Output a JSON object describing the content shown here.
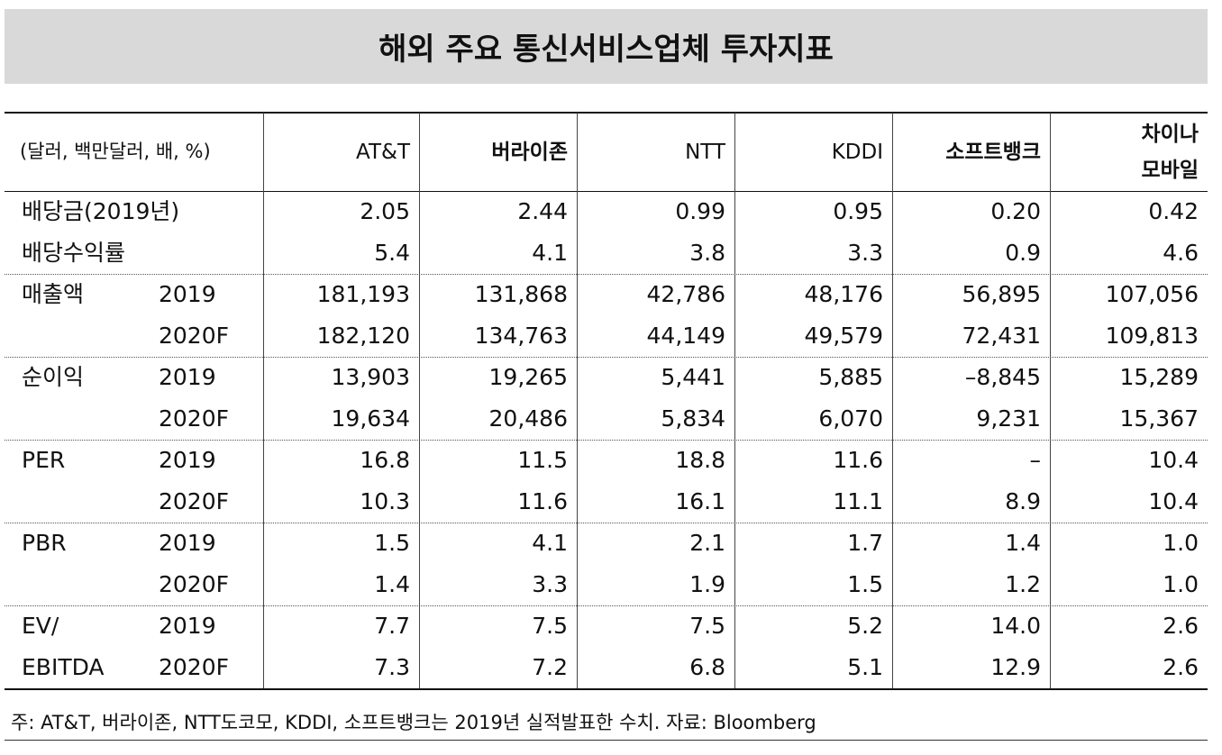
{
  "header": {
    "title": "해외 주요 통신서비스업체 투자지표"
  },
  "table": {
    "unit_label": "(달러, 백만달러, 배, %)",
    "columns": [
      [
        "AT&T"
      ],
      [
        "버라이존"
      ],
      [
        "NTT"
      ],
      [
        "KDDI"
      ],
      [
        "소프트뱅크"
      ],
      [
        "차이나",
        "모바일"
      ]
    ],
    "rows": [
      {
        "label": "배당금(2019년)",
        "values": [
          "2.05",
          "2.44",
          "0.99",
          "0.95",
          "0.20",
          "0.42"
        ]
      },
      {
        "label": "배당수익률",
        "values": [
          "5.4",
          "4.1",
          "3.8",
          "3.3",
          "0.9",
          "4.6"
        ]
      },
      {
        "label": "매출액",
        "year": "2019",
        "values": [
          "181,193",
          "131,868",
          "42,786",
          "48,176",
          "56,895",
          "107,056"
        ]
      },
      {
        "year": "2020F",
        "values": [
          "182,120",
          "134,763",
          "44,149",
          "49,579",
          "72,431",
          "109,813"
        ]
      },
      {
        "label": "순이익",
        "year": "2019",
        "values": [
          "13,903",
          "19,265",
          "5,441",
          "5,885",
          "–8,845",
          "15,289"
        ]
      },
      {
        "year": "2020F",
        "values": [
          "19,634",
          "20,486",
          "5,834",
          "6,070",
          "9,231",
          "15,367"
        ]
      },
      {
        "label": "PER",
        "year": "2019",
        "values": [
          "16.8",
          "11.5",
          "18.8",
          "11.6",
          "–",
          "10.4"
        ]
      },
      {
        "year": "2020F",
        "values": [
          "10.3",
          "11.6",
          "16.1",
          "11.1",
          "8.9",
          "10.4"
        ]
      },
      {
        "label": "PBR",
        "year": "2019",
        "values": [
          "1.5",
          "4.1",
          "2.1",
          "1.7",
          "1.4",
          "1.0"
        ]
      },
      {
        "year": "2020F",
        "values": [
          "1.4",
          "3.3",
          "1.9",
          "1.5",
          "1.2",
          "1.0"
        ]
      },
      {
        "label": "EV/",
        "year": "2019",
        "values": [
          "7.7",
          "7.5",
          "7.5",
          "5.2",
          "14.0",
          "2.6"
        ]
      },
      {
        "label": "EBITDA",
        "year": "2020F",
        "values": [
          "7.3",
          "7.2",
          "6.8",
          "5.1",
          "12.9",
          "2.6"
        ]
      }
    ]
  },
  "footnote": "주: AT&T, 버라이존, NTT도코모, KDDI, 소프트뱅크는 2019년 실적발표한 수치. 자료: Bloomberg"
}
